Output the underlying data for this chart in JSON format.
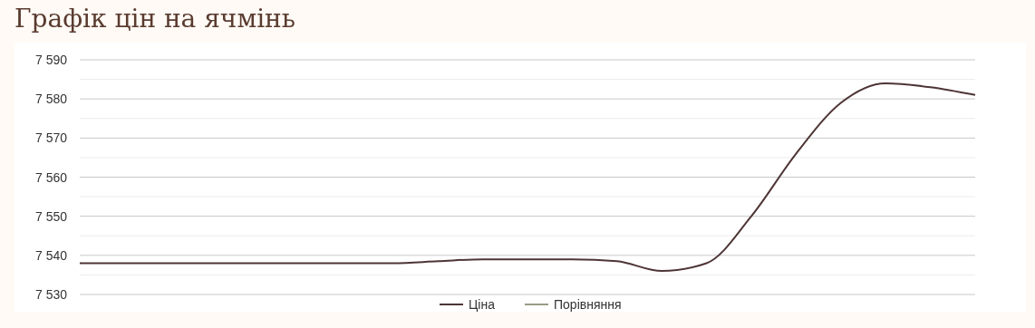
{
  "chart_data": {
    "type": "line",
    "title": "Графік цін на ячмінь",
    "categories": [
      null,
      null,
      null,
      null,
      null,
      null,
      null,
      null,
      null,
      null,
      null,
      null,
      null,
      null,
      null,
      null,
      null,
      null,
      null,
      null,
      null
    ],
    "series": [
      {
        "name": "Ціна",
        "color": "#4e3535",
        "values": [
          7538,
          7538,
          7538,
          7538,
          7538,
          7538,
          7538,
          7538,
          7538.5,
          7539,
          7539,
          7539,
          7538.5,
          7536,
          7538,
          7550,
          7566,
          7579,
          7584,
          7583,
          7581
        ]
      },
      {
        "name": "Порівняння",
        "color": "#9a9c84",
        "values": [
          null,
          null,
          null,
          null,
          null,
          null,
          null,
          null,
          null,
          null,
          null,
          null,
          null,
          null,
          null,
          null,
          null,
          null,
          null,
          null,
          null
        ]
      }
    ],
    "ylim": [
      7530,
      7590
    ],
    "yticks": [
      {
        "value": 7530,
        "label": "7 530"
      },
      {
        "value": 7535,
        "label": null
      },
      {
        "value": 7540,
        "label": "7 540"
      },
      {
        "value": 7545,
        "label": null
      },
      {
        "value": 7550,
        "label": "7 550"
      },
      {
        "value": 7555,
        "label": null
      },
      {
        "value": 7560,
        "label": "7 560"
      },
      {
        "value": 7565,
        "label": null
      },
      {
        "value": 7570,
        "label": "7 570"
      },
      {
        "value": 7575,
        "label": null
      },
      {
        "value": 7580,
        "label": "7 580"
      },
      {
        "value": 7585,
        "label": null
      },
      {
        "value": 7590,
        "label": "7 590"
      }
    ],
    "grid": true,
    "legend": "bottom",
    "marker": "none",
    "line_style": "solid"
  }
}
